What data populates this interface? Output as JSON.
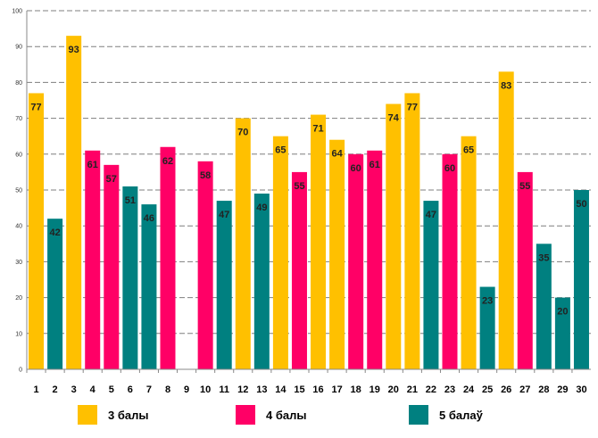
{
  "chart_data": {
    "type": "bar",
    "title": "",
    "xlabel": "",
    "ylabel": "",
    "ylim": [
      0,
      100
    ],
    "yticks": [
      0,
      10,
      20,
      30,
      40,
      50,
      60,
      70,
      80,
      90,
      100
    ],
    "categories": [
      "1",
      "2",
      "3",
      "4",
      "5",
      "6",
      "7",
      "8",
      "9",
      "10",
      "11",
      "12",
      "13",
      "14",
      "15",
      "16",
      "17",
      "18",
      "19",
      "20",
      "21",
      "22",
      "23",
      "24",
      "25",
      "26",
      "27",
      "28",
      "29",
      "30"
    ],
    "values": [
      77,
      42,
      93,
      61,
      57,
      51,
      46,
      62,
      null,
      58,
      47,
      70,
      49,
      65,
      55,
      71,
      64,
      60,
      61,
      74,
      77,
      47,
      60,
      65,
      23,
      83,
      55,
      35,
      20,
      50
    ],
    "value_labels": [
      "77",
      "42",
      "93",
      "61",
      "57",
      "51",
      "46",
      "62",
      "",
      "58",
      "47",
      "70",
      "49",
      "65",
      "55",
      "71",
      "64",
      "60",
      "61",
      "74",
      "77",
      "47",
      "60",
      "65",
      "23",
      "83",
      "55",
      "35",
      "20",
      "50"
    ],
    "groups": [
      0,
      2,
      0,
      1,
      1,
      2,
      2,
      1,
      null,
      1,
      2,
      0,
      2,
      0,
      1,
      0,
      0,
      1,
      1,
      0,
      0,
      2,
      1,
      0,
      2,
      0,
      1,
      2,
      2,
      2
    ],
    "series": [
      {
        "name": "3 балы",
        "color": "#FFC000"
      },
      {
        "name": "4 балы",
        "color": "#FF0066"
      },
      {
        "name": "5 балаў",
        "color": "#008080"
      }
    ],
    "grid": true,
    "legend_position": "bottom"
  }
}
